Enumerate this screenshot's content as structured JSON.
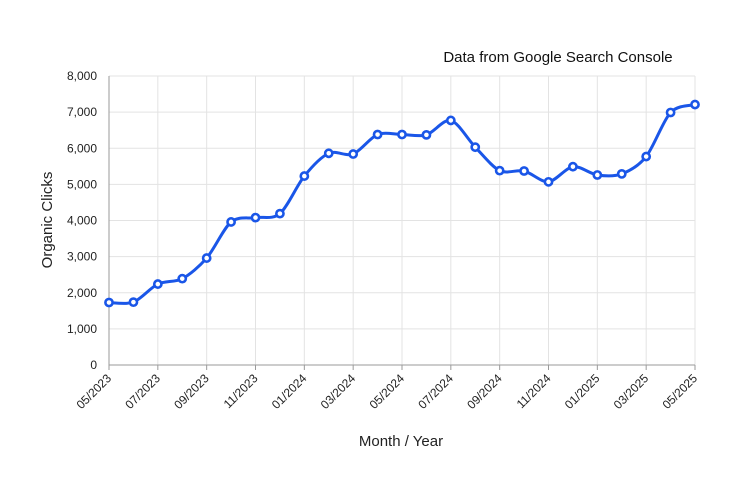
{
  "chart_data": {
    "type": "line",
    "annotation": "Data from Google Search Console",
    "xlabel": "Month / Year",
    "ylabel": "Organic Clicks",
    "ylim": [
      0,
      8000
    ],
    "y_ticks": [
      "0",
      "1,000",
      "2,000",
      "3,000",
      "4,000",
      "5,000",
      "6,000",
      "7,000",
      "8,000"
    ],
    "x_tick_labels": [
      "05/2023",
      "07/2023",
      "09/2023",
      "11/2023",
      "01/2024",
      "03/2024",
      "05/2024",
      "07/2024",
      "09/2024",
      "11/2024",
      "01/2025",
      "03/2025",
      "05/2025"
    ],
    "grid": true,
    "categories": [
      "05/2023",
      "06/2023",
      "07/2023",
      "08/2023",
      "09/2023",
      "10/2023",
      "11/2023",
      "12/2023",
      "01/2024",
      "02/2024",
      "03/2024",
      "04/2024",
      "05/2024",
      "06/2024",
      "07/2024",
      "08/2024",
      "09/2024",
      "10/2024",
      "11/2024",
      "12/2024",
      "01/2025",
      "02/2025",
      "03/2025",
      "04/2025",
      "05/2025"
    ],
    "series": [
      {
        "color": "#1a56e8",
        "values": [
          1730,
          1740,
          2240,
          2390,
          2960,
          3960,
          4080,
          4190,
          5230,
          5860,
          5840,
          6380,
          6380,
          6370,
          6770,
          6030,
          5380,
          5370,
          5070,
          5490,
          5260,
          5290,
          5770,
          6990,
          7210
        ]
      }
    ]
  }
}
